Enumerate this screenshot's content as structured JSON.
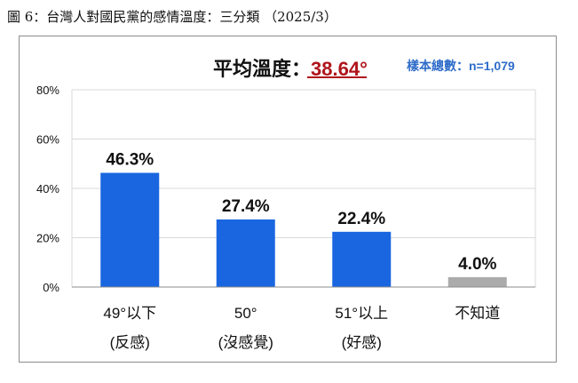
{
  "caption": "圖 6：台灣人對國民黨的感情溫度：三分類 （2025/3）",
  "average": {
    "label": "平均溫度：",
    "value": "38.64°"
  },
  "sample": "樣本總數：n=1,079",
  "colors": {
    "bar": "#1a66e0",
    "bar_unknown": "#ababab",
    "grid": "#d9d9d9",
    "axis": "#8c8c8c",
    "accent": "#b0141b",
    "sample_text": "#2f6cc9"
  },
  "chart_data": {
    "type": "bar",
    "categories": [
      {
        "line1": "49°以下",
        "line2": "(反感)"
      },
      {
        "line1": "50°",
        "line2": "(沒感覺)"
      },
      {
        "line1": "51°以上",
        "line2": "(好感)"
      },
      {
        "line1": "不知道",
        "line2": ""
      }
    ],
    "values": [
      46.3,
      27.4,
      22.4,
      4.0
    ],
    "value_labels": [
      "46.3%",
      "27.4%",
      "22.4%",
      "4.0%"
    ],
    "ylim": [
      0,
      80
    ],
    "yticks": [
      0,
      20,
      40,
      60,
      80
    ],
    "ytick_labels": [
      "0%",
      "20%",
      "40%",
      "60%",
      "80%"
    ],
    "grid": true,
    "legend": "none"
  }
}
